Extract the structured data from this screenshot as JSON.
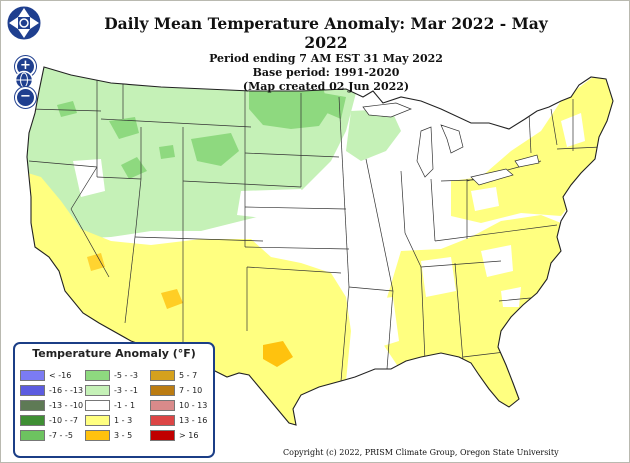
{
  "map": {
    "title": "Daily Mean Temperature Anomaly: Mar 2022 - May 2022",
    "subtitle_period": "Period ending 7 AM EST 31 May 2022",
    "base_period": "Base period: 1991-2020",
    "created": "(Map created 02 Jun 2022)",
    "copyright": "Copyright (c) 2022, PRISM Climate Group, Oregon State University"
  },
  "controls": {
    "pan_up": "pan up",
    "pan_down": "pan down",
    "pan_left": "pan left",
    "pan_right": "pan right",
    "zoom_in": "+",
    "zoom_out": "−",
    "icons": [
      "pan-arrows-icon",
      "zoom-in-icon",
      "globe-icon",
      "zoom-out-icon"
    ]
  },
  "legend": {
    "title": "Temperature Anomaly (°F)",
    "items": [
      {
        "label": "< -16",
        "color": "#7b7bf3"
      },
      {
        "label": "-16 - -13",
        "color": "#5c5ce0"
      },
      {
        "label": "-13 - -10",
        "color": "#5e7a55"
      },
      {
        "label": "-10 - -7",
        "color": "#3f8f34"
      },
      {
        "label": "-7 - -5",
        "color": "#6dc360"
      },
      {
        "label": "-5 - -3",
        "color": "#8ed97f"
      },
      {
        "label": "-3 - -1",
        "color": "#c5f1b7"
      },
      {
        "label": "-1 - 1",
        "color": "#ffffff"
      },
      {
        "label": "1 - 3",
        "color": "#ffff80"
      },
      {
        "label": "3 - 5",
        "color": "#ffc20e"
      },
      {
        "label": "5 - 7",
        "color": "#d5a11d"
      },
      {
        "label": "7 - 10",
        "color": "#bb7c12"
      },
      {
        "label": "10 - 13",
        "color": "#d98a8a"
      },
      {
        "label": "13 - 16",
        "color": "#dc4545"
      },
      {
        "label": "> 16",
        "color": "#c00000"
      }
    ]
  },
  "colors": {
    "cool": "#c5f1b7",
    "cooler": "#8ed97f",
    "neutral": "#ffffff",
    "warm": "#ffff80",
    "warmer": "#ffc20e",
    "borders": "#333333",
    "control_blue": "#1f3f8f"
  }
}
